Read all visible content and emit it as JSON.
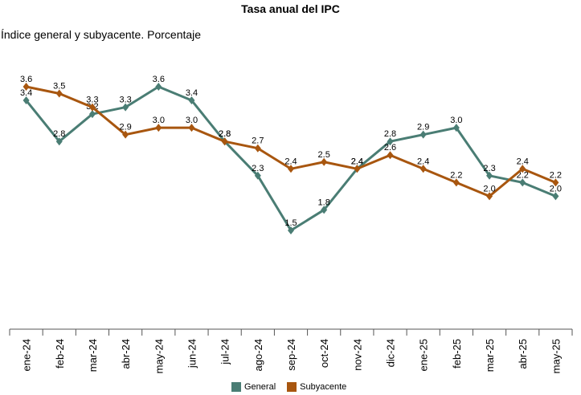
{
  "chart_data": {
    "type": "line",
    "title": "Tasa anual del IPC",
    "subtitle": "Índice general y subyacente. Porcentaje",
    "categories": [
      "ene-24",
      "feb-24",
      "mar-24",
      "abr-24",
      "may-24",
      "jun-24",
      "jul-24",
      "ago-24",
      "sep-24",
      "oct-24",
      "nov-24",
      "dic-24",
      "ene-25",
      "feb-25",
      "mar-25",
      "abr-25",
      "may-25"
    ],
    "series": [
      {
        "name": "General",
        "color": "#4a7d74",
        "values": [
          3.4,
          2.8,
          3.2,
          3.3,
          3.6,
          3.4,
          2.8,
          2.3,
          1.5,
          1.8,
          2.4,
          2.8,
          2.9,
          3.0,
          2.3,
          2.2,
          2.0
        ]
      },
      {
        "name": "Subyacente",
        "color": "#a8560f",
        "values": [
          3.6,
          3.5,
          3.3,
          2.9,
          3.0,
          3.0,
          2.8,
          2.7,
          2.4,
          2.5,
          2.4,
          2.6,
          2.4,
          2.2,
          2.0,
          2.4,
          2.2
        ]
      }
    ],
    "data_labels": true,
    "legend_position": "bottom",
    "grid": false
  }
}
